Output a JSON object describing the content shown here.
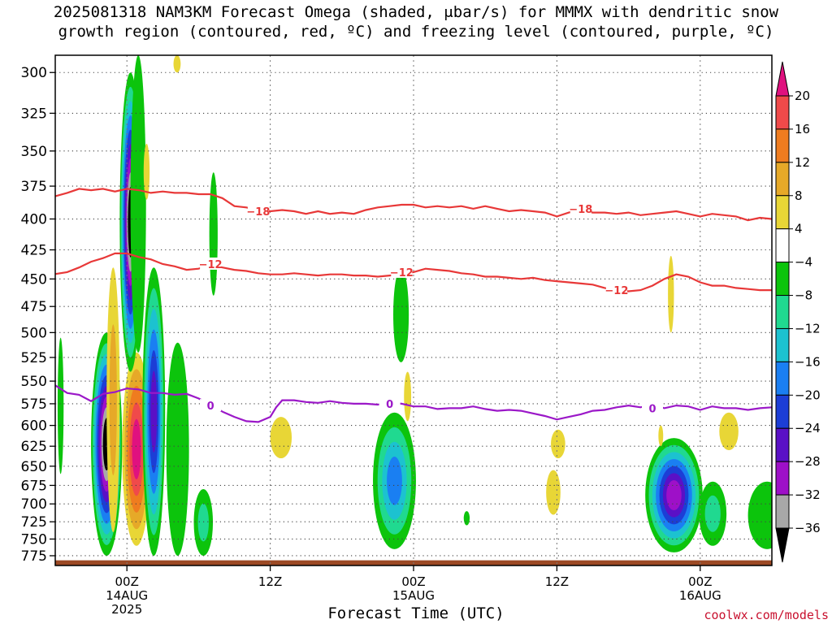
{
  "title": {
    "line1": "2025081318 NAM3KM Forecast Omega (shaded, μbar/s) for MMMX with dendritic snow",
    "line2": "growth region (contoured, red, ºC) and freezing level (contoured, purple, ºC)"
  },
  "credit": "coolwx.com/models",
  "chart_data": {
    "type": "heatmap",
    "title": "2025081318 NAM3KM Forecast Omega (shaded, μbar/s) for MMMX with dendritic snow growth region (contoured, red, ºC) and freezing level (contoured, purple, ºC)",
    "xlabel": "Forecast Time (UTC)",
    "ylabel": "",
    "x_unit": "forecast hour",
    "xlim": [
      0,
      60
    ],
    "ylim": [
      790,
      290
    ],
    "y_scale": "log-pressure",
    "grid": true,
    "y_ticks": [
      300,
      325,
      350,
      375,
      400,
      425,
      450,
      475,
      500,
      525,
      550,
      575,
      600,
      625,
      650,
      675,
      700,
      725,
      750,
      775
    ],
    "x_ticks": [
      {
        "hour": 6,
        "label": "00Z",
        "sub1": "14AUG",
        "sub2": "2025"
      },
      {
        "hour": 18,
        "label": "12Z",
        "sub1": "",
        "sub2": ""
      },
      {
        "hour": 30,
        "label": "00Z",
        "sub1": "15AUG",
        "sub2": ""
      },
      {
        "hour": 42,
        "label": "12Z",
        "sub1": "",
        "sub2": ""
      },
      {
        "hour": 54,
        "label": "00Z",
        "sub1": "16AUG",
        "sub2": ""
      }
    ],
    "colorbar": {
      "labels": [
        "20",
        "16",
        "12",
        "8",
        "4",
        "−4",
        "−8",
        "−12",
        "−16",
        "−20",
        "−24",
        "−28",
        "−32",
        "−36"
      ],
      "bands": [
        {
          "from": 20,
          "to": 24,
          "color": "#e0117f"
        },
        {
          "from": 16,
          "to": 20,
          "color": "#f04a4a"
        },
        {
          "from": 12,
          "to": 16,
          "color": "#ef7c1f"
        },
        {
          "from": 8,
          "to": 12,
          "color": "#e6a928"
        },
        {
          "from": 4,
          "to": 8,
          "color": "#e8d636"
        },
        {
          "from": -4,
          "to": 4,
          "color": "#ffffff"
        },
        {
          "from": -8,
          "to": -4,
          "color": "#0cc40c"
        },
        {
          "from": -12,
          "to": -8,
          "color": "#20d990"
        },
        {
          "from": -16,
          "to": -12,
          "color": "#1cc2d0"
        },
        {
          "from": -20,
          "to": -16,
          "color": "#1a7ff2"
        },
        {
          "from": -24,
          "to": -20,
          "color": "#1c3ed6"
        },
        {
          "from": -28,
          "to": -24,
          "color": "#5a10c6"
        },
        {
          "from": -32,
          "to": -28,
          "color": "#9e10c8"
        },
        {
          "from": -36,
          "to": -32,
          "color": "#a8a8a8"
        },
        {
          "from": -40,
          "to": -36,
          "color": "#000000"
        }
      ]
    },
    "contours": [
      {
        "name": "-18",
        "color": "#e83838",
        "label_positions": [
          [
            17,
            394
          ],
          [
            44,
            392
          ]
        ],
        "points": [
          [
            -0.2,
            383
          ],
          [
            1,
            380
          ],
          [
            2,
            377
          ],
          [
            3,
            378
          ],
          [
            4,
            377
          ],
          [
            5,
            379
          ],
          [
            6,
            377
          ],
          [
            7,
            378
          ],
          [
            8,
            380
          ],
          [
            9,
            379
          ],
          [
            10,
            380
          ],
          [
            11,
            380
          ],
          [
            12,
            381
          ],
          [
            13,
            381
          ],
          [
            14,
            384
          ],
          [
            15,
            390
          ],
          [
            16,
            391
          ],
          [
            17,
            393
          ],
          [
            18,
            394
          ],
          [
            19,
            393
          ],
          [
            20,
            394
          ],
          [
            21,
            396
          ],
          [
            22,
            394
          ],
          [
            23,
            396
          ],
          [
            24,
            395
          ],
          [
            25,
            396
          ],
          [
            26,
            393
          ],
          [
            27,
            391
          ],
          [
            28,
            390
          ],
          [
            29,
            389
          ],
          [
            30,
            389
          ],
          [
            31,
            391
          ],
          [
            32,
            390
          ],
          [
            33,
            391
          ],
          [
            34,
            390
          ],
          [
            35,
            392
          ],
          [
            36,
            390
          ],
          [
            37,
            392
          ],
          [
            38,
            394
          ],
          [
            39,
            393
          ],
          [
            40,
            394
          ],
          [
            41,
            395
          ],
          [
            42,
            398
          ],
          [
            43,
            395
          ],
          [
            44,
            393
          ],
          [
            45,
            395
          ],
          [
            46,
            395
          ],
          [
            47,
            396
          ],
          [
            48,
            395
          ],
          [
            49,
            397
          ],
          [
            50,
            396
          ],
          [
            51,
            395
          ],
          [
            52,
            394
          ],
          [
            53,
            396
          ],
          [
            54,
            398
          ],
          [
            55,
            396
          ],
          [
            56,
            397
          ],
          [
            57,
            398
          ],
          [
            58,
            401
          ],
          [
            59,
            399
          ],
          [
            60,
            400
          ]
        ]
      },
      {
        "name": "-12",
        "color": "#e83838",
        "label_positions": [
          [
            13,
            437
          ],
          [
            29,
            444
          ],
          [
            47,
            460
          ]
        ],
        "points": [
          [
            -0.2,
            446
          ],
          [
            1,
            444
          ],
          [
            2,
            440
          ],
          [
            3,
            435
          ],
          [
            4,
            432
          ],
          [
            5,
            428
          ],
          [
            6,
            428
          ],
          [
            7,
            431
          ],
          [
            8,
            433
          ],
          [
            9,
            437
          ],
          [
            10,
            439
          ],
          [
            11,
            442
          ],
          [
            12,
            441
          ],
          [
            13,
            438
          ],
          [
            14,
            440
          ],
          [
            15,
            442
          ],
          [
            16,
            443
          ],
          [
            17,
            445
          ],
          [
            18,
            446
          ],
          [
            19,
            446
          ],
          [
            20,
            445
          ],
          [
            21,
            446
          ],
          [
            22,
            447
          ],
          [
            23,
            446
          ],
          [
            24,
            446
          ],
          [
            25,
            447
          ],
          [
            26,
            447
          ],
          [
            27,
            448
          ],
          [
            28,
            447
          ],
          [
            29,
            446
          ],
          [
            30,
            444
          ],
          [
            31,
            441
          ],
          [
            32,
            442
          ],
          [
            33,
            443
          ],
          [
            34,
            445
          ],
          [
            35,
            446
          ],
          [
            36,
            448
          ],
          [
            37,
            448
          ],
          [
            38,
            449
          ],
          [
            39,
            450
          ],
          [
            40,
            449
          ],
          [
            41,
            451
          ],
          [
            42,
            452
          ],
          [
            43,
            453
          ],
          [
            44,
            454
          ],
          [
            45,
            455
          ],
          [
            46,
            458
          ],
          [
            47,
            460
          ],
          [
            48,
            461
          ],
          [
            49,
            460
          ],
          [
            50,
            456
          ],
          [
            51,
            450
          ],
          [
            52,
            446
          ],
          [
            53,
            448
          ],
          [
            54,
            453
          ],
          [
            55,
            456
          ],
          [
            56,
            456
          ],
          [
            57,
            458
          ],
          [
            58,
            459
          ],
          [
            59,
            460
          ],
          [
            60,
            460
          ]
        ]
      },
      {
        "name": "0",
        "color": "#9b18c8",
        "label_positions": [
          [
            13,
            577
          ],
          [
            28,
            575
          ],
          [
            50,
            580
          ]
        ],
        "points": [
          [
            -0.2,
            553
          ],
          [
            1,
            563
          ],
          [
            2,
            565
          ],
          [
            3,
            572
          ],
          [
            4,
            564
          ],
          [
            5,
            562
          ],
          [
            6,
            558
          ],
          [
            7,
            559
          ],
          [
            8,
            563
          ],
          [
            9,
            563
          ],
          [
            10,
            565
          ],
          [
            11,
            564
          ],
          [
            12,
            569
          ],
          [
            13,
            576
          ],
          [
            14,
            584
          ],
          [
            15,
            590
          ],
          [
            16,
            595
          ],
          [
            17,
            596
          ],
          [
            18,
            590
          ],
          [
            18.5,
            579
          ],
          [
            19,
            571
          ],
          [
            20,
            571
          ],
          [
            21,
            573
          ],
          [
            22,
            574
          ],
          [
            23,
            572
          ],
          [
            24,
            574
          ],
          [
            25,
            575
          ],
          [
            26,
            575
          ],
          [
            27,
            576
          ],
          [
            28,
            574
          ],
          [
            29,
            575
          ],
          [
            30,
            578
          ],
          [
            31,
            578
          ],
          [
            32,
            581
          ],
          [
            33,
            580
          ],
          [
            34,
            580
          ],
          [
            35,
            578
          ],
          [
            36,
            581
          ],
          [
            37,
            583
          ],
          [
            38,
            582
          ],
          [
            39,
            583
          ],
          [
            40,
            586
          ],
          [
            41,
            589
          ],
          [
            42,
            593
          ],
          [
            43,
            590
          ],
          [
            44,
            587
          ],
          [
            45,
            583
          ],
          [
            46,
            582
          ],
          [
            47,
            579
          ],
          [
            48,
            577
          ],
          [
            49,
            579
          ],
          [
            50,
            576
          ],
          [
            51,
            580
          ],
          [
            52,
            577
          ],
          [
            53,
            578
          ],
          [
            54,
            582
          ],
          [
            55,
            578
          ],
          [
            56,
            580
          ],
          [
            57,
            580
          ],
          [
            58,
            582
          ],
          [
            59,
            580
          ],
          [
            60,
            579
          ]
        ]
      }
    ],
    "omega_cells": [
      {
        "x": 0.2,
        "w": 0.5,
        "p_top": 505,
        "p_bot": 660,
        "levels": [
          -6
        ]
      },
      {
        "x": 3.0,
        "w": 2.6,
        "p_top": 500,
        "p_bot": 775,
        "levels": [
          -6,
          -10,
          -14,
          -18,
          -22,
          -26,
          -30,
          -34,
          -38
        ]
      },
      {
        "x": 4.3,
        "w": 1.1,
        "p_top": 440,
        "p_bot": 740,
        "levels": [
          6,
          10
        ]
      },
      {
        "x": 5.6,
        "w": 2.4,
        "p_top": 520,
        "p_bot": 760,
        "levels": [
          6,
          10,
          14,
          18,
          22
        ]
      },
      {
        "x": 5.4,
        "w": 1.8,
        "p_top": 300,
        "p_bot": 540,
        "levels": [
          -6,
          -10,
          -14,
          -18,
          -22,
          -26,
          -30,
          -34,
          -38
        ]
      },
      {
        "x": 6.3,
        "w": 1.3,
        "p_top": 290,
        "p_bot": 520,
        "levels": [
          -6
        ]
      },
      {
        "x": 7.3,
        "w": 1.9,
        "p_top": 440,
        "p_bot": 775,
        "levels": [
          -6,
          -10,
          -14,
          -18,
          -22,
          -26
        ]
      },
      {
        "x": 9.3,
        "w": 1.9,
        "p_top": 510,
        "p_bot": 775,
        "levels": [
          -6
        ]
      },
      {
        "x": 11.6,
        "w": 1.6,
        "p_top": 680,
        "p_bot": 775,
        "levels": [
          -6,
          -10
        ]
      },
      {
        "x": 12.9,
        "w": 0.7,
        "p_top": 365,
        "p_bot": 465,
        "levels": [
          -6
        ]
      },
      {
        "x": 7.4,
        "w": 0.5,
        "p_top": 345,
        "p_bot": 385,
        "levels": [
          6
        ]
      },
      {
        "x": 9.9,
        "w": 0.6,
        "p_top": 290,
        "p_bot": 300,
        "levels": [
          6
        ]
      },
      {
        "x": 18.0,
        "w": 1.8,
        "p_top": 590,
        "p_bot": 640,
        "levels": [
          6
        ]
      },
      {
        "x": 26.6,
        "w": 3.6,
        "p_top": 585,
        "p_bot": 765,
        "levels": [
          -6,
          -10,
          -14,
          -18
        ]
      },
      {
        "x": 28.3,
        "w": 1.3,
        "p_top": 440,
        "p_bot": 530,
        "levels": [
          -6
        ]
      },
      {
        "x": 29.2,
        "w": 0.6,
        "p_top": 540,
        "p_bot": 595,
        "levels": [
          6
        ]
      },
      {
        "x": 34.2,
        "w": 0.5,
        "p_top": 710,
        "p_bot": 730,
        "levels": [
          -6
        ]
      },
      {
        "x": 41.5,
        "w": 1.2,
        "p_top": 605,
        "p_bot": 640,
        "levels": [
          6
        ]
      },
      {
        "x": 41.1,
        "w": 1.2,
        "p_top": 655,
        "p_bot": 715,
        "levels": [
          6
        ]
      },
      {
        "x": 49.4,
        "w": 4.8,
        "p_top": 615,
        "p_bot": 770,
        "levels": [
          -6,
          -10,
          -14,
          -18,
          -22,
          -26,
          -30
        ]
      },
      {
        "x": 53.9,
        "w": 2.3,
        "p_top": 670,
        "p_bot": 760,
        "levels": [
          -6,
          -10
        ]
      },
      {
        "x": 55.6,
        "w": 1.6,
        "p_top": 585,
        "p_bot": 630,
        "levels": [
          6
        ]
      },
      {
        "x": 58.0,
        "w": 3.2,
        "p_top": 670,
        "p_bot": 765,
        "levels": [
          -6
        ]
      },
      {
        "x": 50.5,
        "w": 0.4,
        "p_top": 600,
        "p_bot": 625,
        "levels": [
          6
        ]
      },
      {
        "x": 51.3,
        "w": 0.5,
        "p_top": 430,
        "p_bot": 500,
        "levels": [
          6
        ]
      }
    ],
    "terrain": {
      "color": "#9c4a25",
      "p_top": 782,
      "p_bot": 790
    }
  }
}
